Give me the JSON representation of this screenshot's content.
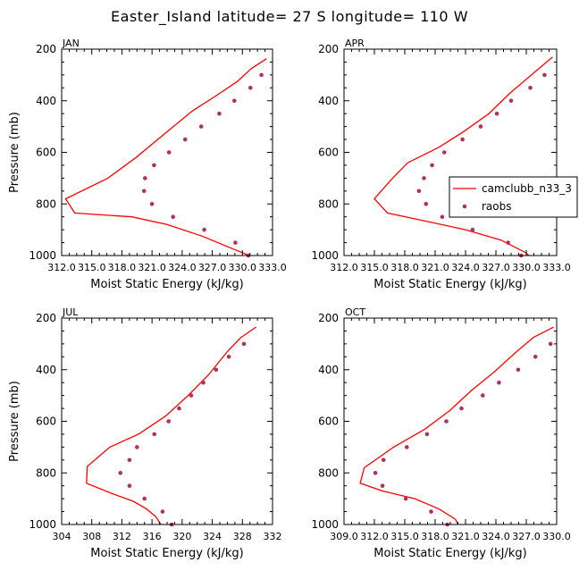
{
  "title": "Easter_Island  latitude= 27 S longitude= 110 W",
  "colors": {
    "model": "#ff0000",
    "obs": "#b03060",
    "axis": "#000000"
  },
  "chart_data": [
    {
      "type": "line",
      "panel_label": "JAN",
      "xlabel": "Moist Static Energy (kJ/kg)",
      "ylabel": "Pressure (mb)",
      "xlim": [
        312.0,
        333.0
      ],
      "ylim": [
        1000,
        200
      ],
      "xticks": [
        312.0,
        315.0,
        318.0,
        321.0,
        324.0,
        327.0,
        330.0,
        333.0
      ],
      "xtick_labels": [
        "312.0",
        "315.0",
        "318.0",
        "321.0",
        "324.0",
        "327.0",
        "330.0",
        "333.0"
      ],
      "yticks": [
        200,
        400,
        600,
        800,
        1000
      ],
      "ytick_labels": [
        "200",
        "400",
        "600",
        "800",
        "1000"
      ],
      "series": [
        {
          "type": "line",
          "points": [
            [
              332.4,
              237
            ],
            [
              330.9,
              275
            ],
            [
              329.5,
              325
            ],
            [
              327.4,
              380
            ],
            [
              325.0,
              440
            ],
            [
              322.2,
              530
            ],
            [
              319.4,
              620
            ],
            [
              316.6,
              700
            ],
            [
              312.4,
              780
            ],
            [
              313.3,
              835
            ],
            [
              319.0,
              850
            ],
            [
              322.5,
              880
            ],
            [
              326.0,
              925
            ],
            [
              328.8,
              970
            ],
            [
              331.6,
              1015
            ]
          ]
        },
        {
          "type": "scatter",
          "points": [
            [
              331.9,
              300
            ],
            [
              330.8,
              350
            ],
            [
              329.2,
              400
            ],
            [
              327.7,
              450
            ],
            [
              325.9,
              500
            ],
            [
              324.3,
              550
            ],
            [
              322.7,
              600
            ],
            [
              321.2,
              650
            ],
            [
              320.3,
              700
            ],
            [
              320.2,
              750
            ],
            [
              321.0,
              800
            ],
            [
              323.1,
              850
            ],
            [
              326.2,
              900
            ],
            [
              329.3,
              950
            ],
            [
              330.6,
              1000
            ]
          ]
        }
      ]
    },
    {
      "type": "line",
      "panel_label": "APR",
      "xlabel": "Moist Static Energy (kJ/kg)",
      "ylabel": "",
      "xlim": [
        312.0,
        333.0
      ],
      "ylim": [
        1000,
        200
      ],
      "xticks": [
        312.0,
        315.0,
        318.0,
        321.0,
        324.0,
        327.0,
        330.0,
        333.0
      ],
      "xtick_labels": [
        "312.0",
        "315.0",
        "318.0",
        "321.0",
        "324.0",
        "327.0",
        "330.0",
        "333.0"
      ],
      "yticks": [
        200,
        400,
        600,
        800,
        1000
      ],
      "ytick_labels": [
        "200",
        "400",
        "600",
        "800",
        "1000"
      ],
      "legend": {
        "position": "right",
        "entries": [
          "camclubb_n33_3",
          "raobs"
        ]
      },
      "series": [
        {
          "name": "camclubb_n33_3",
          "type": "line",
          "points": [
            [
              332.6,
              230
            ],
            [
              330.5,
              300
            ],
            [
              328.4,
              370
            ],
            [
              326.3,
              450
            ],
            [
              323.8,
              520
            ],
            [
              321.4,
              580
            ],
            [
              318.3,
              640
            ],
            [
              316.8,
              700
            ],
            [
              315.0,
              780
            ],
            [
              316.3,
              835
            ],
            [
              320.5,
              870
            ],
            [
              324.0,
              900
            ],
            [
              327.5,
              940
            ],
            [
              330.0,
              990
            ],
            [
              330.5,
              1010
            ]
          ]
        },
        {
          "name": "raobs",
          "type": "scatter",
          "points": [
            [
              331.8,
              300
            ],
            [
              330.4,
              350
            ],
            [
              328.5,
              400
            ],
            [
              327.1,
              450
            ],
            [
              325.5,
              500
            ],
            [
              323.7,
              550
            ],
            [
              321.9,
              600
            ],
            [
              320.7,
              650
            ],
            [
              319.9,
              700
            ],
            [
              319.4,
              750
            ],
            [
              320.1,
              800
            ],
            [
              321.7,
              850
            ],
            [
              324.7,
              900
            ],
            [
              328.2,
              950
            ],
            [
              329.5,
              1000
            ]
          ]
        }
      ]
    },
    {
      "type": "line",
      "panel_label": "JUL",
      "xlabel": "Moist Static Energy (kJ/kg)",
      "ylabel": "Pressure (mb)",
      "xlim": [
        304,
        332
      ],
      "ylim": [
        1000,
        200
      ],
      "xticks": [
        304,
        308,
        312,
        316,
        320,
        324,
        328,
        332
      ],
      "xtick_labels": [
        "304",
        "308",
        "312",
        "316",
        "320",
        "324",
        "328",
        "332"
      ],
      "yticks": [
        200,
        400,
        600,
        800,
        1000
      ],
      "ytick_labels": [
        "200",
        "400",
        "600",
        "800",
        "1000"
      ],
      "series": [
        {
          "type": "line",
          "points": [
            [
              329.8,
              235
            ],
            [
              327.8,
              275
            ],
            [
              326.0,
              330
            ],
            [
              323.5,
              420
            ],
            [
              320.8,
              500
            ],
            [
              317.8,
              580
            ],
            [
              314.2,
              650
            ],
            [
              310.4,
              700
            ],
            [
              307.4,
              775
            ],
            [
              307.3,
              840
            ],
            [
              310.7,
              880
            ],
            [
              313.5,
              910
            ],
            [
              315.3,
              940
            ],
            [
              316.5,
              970
            ],
            [
              317.4,
              1010
            ]
          ]
        },
        {
          "type": "scatter",
          "points": [
            [
              328.2,
              300
            ],
            [
              326.2,
              350
            ],
            [
              324.5,
              400
            ],
            [
              322.8,
              450
            ],
            [
              321.2,
              500
            ],
            [
              319.6,
              550
            ],
            [
              318.2,
              600
            ],
            [
              316.3,
              650
            ],
            [
              314.0,
              700
            ],
            [
              313.0,
              750
            ],
            [
              311.8,
              800
            ],
            [
              313.0,
              850
            ],
            [
              315.0,
              900
            ],
            [
              317.4,
              950
            ],
            [
              318.6,
              1000
            ]
          ]
        }
      ]
    },
    {
      "type": "line",
      "panel_label": "OCT",
      "xlabel": "Moist Static Energy (kJ/kg)",
      "ylabel": "",
      "xlim": [
        309.0,
        330.0
      ],
      "ylim": [
        1000,
        200
      ],
      "xticks": [
        309.0,
        312.0,
        315.0,
        318.0,
        321.0,
        324.0,
        327.0,
        330.0
      ],
      "xtick_labels": [
        "309.0",
        "312.0",
        "315.0",
        "318.0",
        "321.0",
        "324.0",
        "327.0",
        "330.0"
      ],
      "yticks": [
        200,
        400,
        600,
        800,
        1000
      ],
      "ytick_labels": [
        "200",
        "400",
        "600",
        "800",
        "1000"
      ],
      "series": [
        {
          "type": "line",
          "points": [
            [
              329.7,
              235
            ],
            [
              327.7,
              275
            ],
            [
              325.9,
              335
            ],
            [
              323.8,
              410
            ],
            [
              321.6,
              480
            ],
            [
              319.4,
              560
            ],
            [
              317.0,
              630
            ],
            [
              313.9,
              700
            ],
            [
              311.0,
              780
            ],
            [
              310.6,
              840
            ],
            [
              312.8,
              870
            ],
            [
              316.0,
              900
            ],
            [
              318.4,
              940
            ],
            [
              320.0,
              980
            ],
            [
              320.4,
              1010
            ]
          ]
        },
        {
          "type": "scatter",
          "points": [
            [
              329.4,
              300
            ],
            [
              327.9,
              350
            ],
            [
              326.2,
              400
            ],
            [
              324.3,
              450
            ],
            [
              322.7,
              500
            ],
            [
              320.6,
              550
            ],
            [
              319.1,
              600
            ],
            [
              317.2,
              650
            ],
            [
              315.2,
              700
            ],
            [
              312.9,
              750
            ],
            [
              312.1,
              800
            ],
            [
              312.8,
              850
            ],
            [
              315.1,
              900
            ],
            [
              317.6,
              950
            ],
            [
              319.2,
              1000
            ]
          ]
        }
      ]
    }
  ]
}
